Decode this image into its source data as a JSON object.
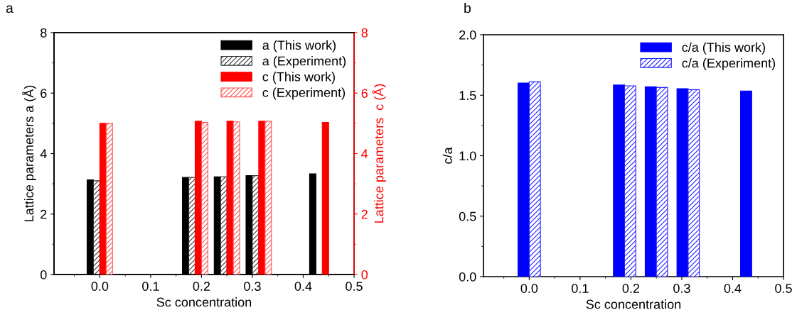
{
  "chart_data": [
    {
      "type": "bar",
      "annotations": [
        "a"
      ],
      "xlabel": "Sc concentration",
      "ylabel": "Lattice parameters a (Å)",
      "y2label": "Lattice parameters  c (Å)",
      "x": [
        0.0,
        0.1875,
        0.25,
        0.3125,
        0.4375
      ],
      "xlim": [
        -0.09,
        0.5
      ],
      "xticks": [
        {
          "value": 0,
          "label": "0.0"
        },
        0.1,
        0.2,
        0.3,
        0.4,
        0.5
      ],
      "ylim": [
        0,
        8
      ],
      "yticks": [
        0,
        2,
        4,
        6,
        8
      ],
      "y2lim": [
        0,
        8
      ],
      "y2ticks": [
        0,
        2,
        4,
        6,
        8
      ],
      "legend": "top right",
      "grid": false,
      "series": [
        {
          "name": "a (This work)",
          "color": "#000000",
          "values": [
            3.13,
            3.21,
            3.23,
            3.27,
            3.33
          ]
        },
        {
          "name": "a (Experiment)",
          "color": "#333333",
          "values": [
            3.1,
            3.21,
            3.23,
            3.27,
            null
          ]
        },
        {
          "name": "c (This work)",
          "color": "#ff0000",
          "axis": "y2",
          "values": [
            5.0,
            5.07,
            5.07,
            5.07,
            5.03
          ]
        },
        {
          "name": "c (Experiment)",
          "color": "#ff5050",
          "axis": "y2",
          "values": [
            5.0,
            5.03,
            5.05,
            5.07,
            null
          ]
        }
      ]
    },
    {
      "type": "bar",
      "annotations": [
        "b"
      ],
      "xlabel": "Sc concentration",
      "ylabel": "c/a",
      "x": [
        0.0,
        0.1875,
        0.25,
        0.3125,
        0.4375
      ],
      "xlim": [
        -0.09,
        0.5
      ],
      "xticks": [
        {
          "value": 0,
          "label": "0.0"
        },
        0.1,
        0.2,
        0.3,
        0.4,
        0.5
      ],
      "ylim": [
        0,
        2
      ],
      "yticks": [
        {
          "value": 0,
          "label": "0.0"
        },
        0.5,
        {
          "value": 1,
          "label": "1.0"
        },
        1.5,
        {
          "value": 2,
          "label": "2.0"
        }
      ],
      "legend": "top right",
      "grid": false,
      "series": [
        {
          "name": "c/a (This work)",
          "color": "#0000ff",
          "values": [
            1.601,
            1.584,
            1.57,
            1.554,
            1.535
          ]
        },
        {
          "name": "c/a (Experiment)",
          "color": "#2020ff",
          "values": [
            1.611,
            1.578,
            1.564,
            1.546,
            null
          ]
        }
      ]
    }
  ]
}
